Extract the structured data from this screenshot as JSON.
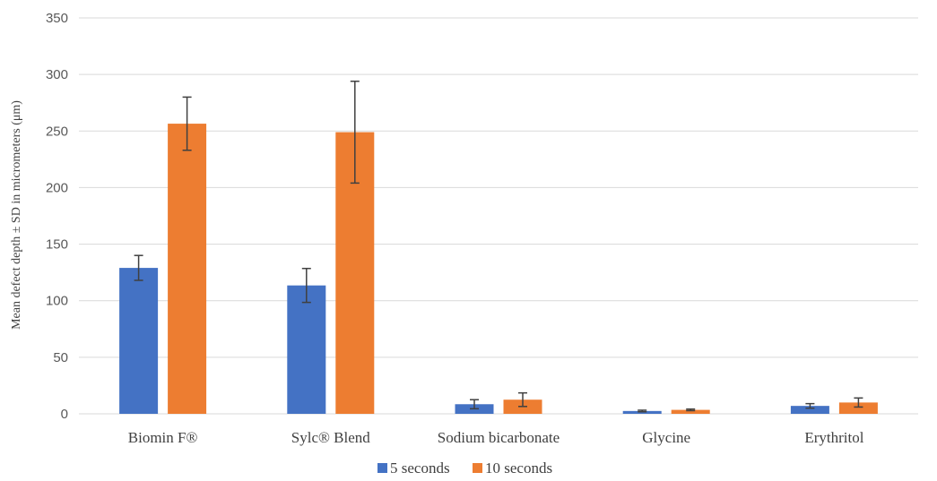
{
  "chart_data": {
    "type": "bar",
    "title": "",
    "xlabel": "",
    "ylabel": "Mean defect depth ± SD in micrometers (μm)",
    "ylim": [
      0,
      350
    ],
    "yticks": [
      0,
      50,
      100,
      150,
      200,
      250,
      300,
      350
    ],
    "grid": true,
    "legend_position": "bottom",
    "categories": [
      "Biomin F®",
      "Sylc® Blend",
      "Sodium bicarbonate",
      "Glycine",
      "Erythritol"
    ],
    "series": [
      {
        "name": "5 seconds",
        "color": "#4472c4",
        "values": [
          129,
          113.5,
          8.5,
          2.5,
          7
        ],
        "errors": [
          11,
          15,
          4,
          0.7,
          2
        ]
      },
      {
        "name": "10 seconds",
        "color": "#ed7d31",
        "values": [
          256.5,
          249,
          12.5,
          3.5,
          10
        ],
        "errors": [
          23.5,
          45,
          6,
          0.7,
          4
        ]
      }
    ]
  }
}
